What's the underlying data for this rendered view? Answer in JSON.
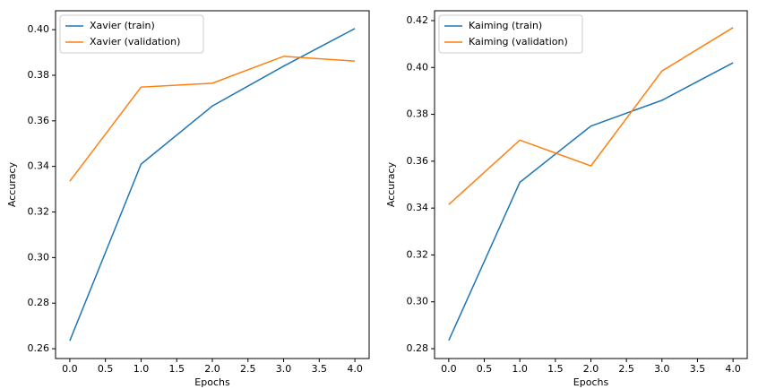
{
  "chart_data": [
    {
      "type": "line",
      "x_label": "Epochs",
      "y_label": "Accuracy",
      "x": [
        0,
        1,
        2,
        3,
        4
      ],
      "series": [
        {
          "name": "Xavier (train)",
          "color": "#1f77b4",
          "values": [
            0.2635,
            0.341,
            0.3665,
            0.384,
            0.4005
          ]
        },
        {
          "name": "Xavier (validation)",
          "color": "#ff7f0e",
          "values": [
            0.3335,
            0.3748,
            0.3765,
            0.3883,
            0.3862
          ]
        }
      ],
      "xlim": [
        -0.2,
        4.2
      ],
      "xticks": [
        {
          "value": 0,
          "label": "0.0"
        },
        0.5,
        {
          "value": 1,
          "label": "1.0"
        },
        1.5,
        {
          "value": 2,
          "label": "2.0"
        },
        2.5,
        {
          "value": 3,
          "label": "3.0"
        },
        3.5,
        {
          "value": 4,
          "label": "4.0"
        }
      ],
      "ylim": [
        0.2557,
        0.4083
      ],
      "yticks": [
        0.26,
        0.28,
        {
          "value": 0.3,
          "label": "0.30"
        },
        0.32,
        0.34,
        0.36,
        0.38,
        {
          "value": 0.4,
          "label": "0.40"
        }
      ],
      "legend": "upper left"
    },
    {
      "type": "line",
      "x_label": "Epochs",
      "y_label": "Accuracy",
      "x": [
        0,
        1,
        2,
        3,
        4
      ],
      "series": [
        {
          "name": "Kaiming (train)",
          "color": "#1f77b4",
          "values": [
            0.2835,
            0.351,
            0.375,
            0.386,
            0.402
          ]
        },
        {
          "name": "Kaiming (validation)",
          "color": "#ff7f0e",
          "values": [
            0.3415,
            0.369,
            0.358,
            0.3985,
            0.417
          ]
        }
      ],
      "xlim": [
        -0.2,
        4.2
      ],
      "xticks": [
        {
          "value": 0,
          "label": "0.0"
        },
        0.5,
        {
          "value": 1,
          "label": "1.0"
        },
        1.5,
        {
          "value": 2,
          "label": "2.0"
        },
        2.5,
        {
          "value": 3,
          "label": "3.0"
        },
        3.5,
        {
          "value": 4,
          "label": "4.0"
        }
      ],
      "ylim": [
        0.2758,
        0.4242
      ],
      "yticks": [
        0.28,
        {
          "value": 0.3,
          "label": "0.30"
        },
        0.32,
        0.34,
        0.36,
        0.38,
        {
          "value": 0.4,
          "label": "0.40"
        },
        0.42
      ],
      "legend": "upper left"
    }
  ]
}
